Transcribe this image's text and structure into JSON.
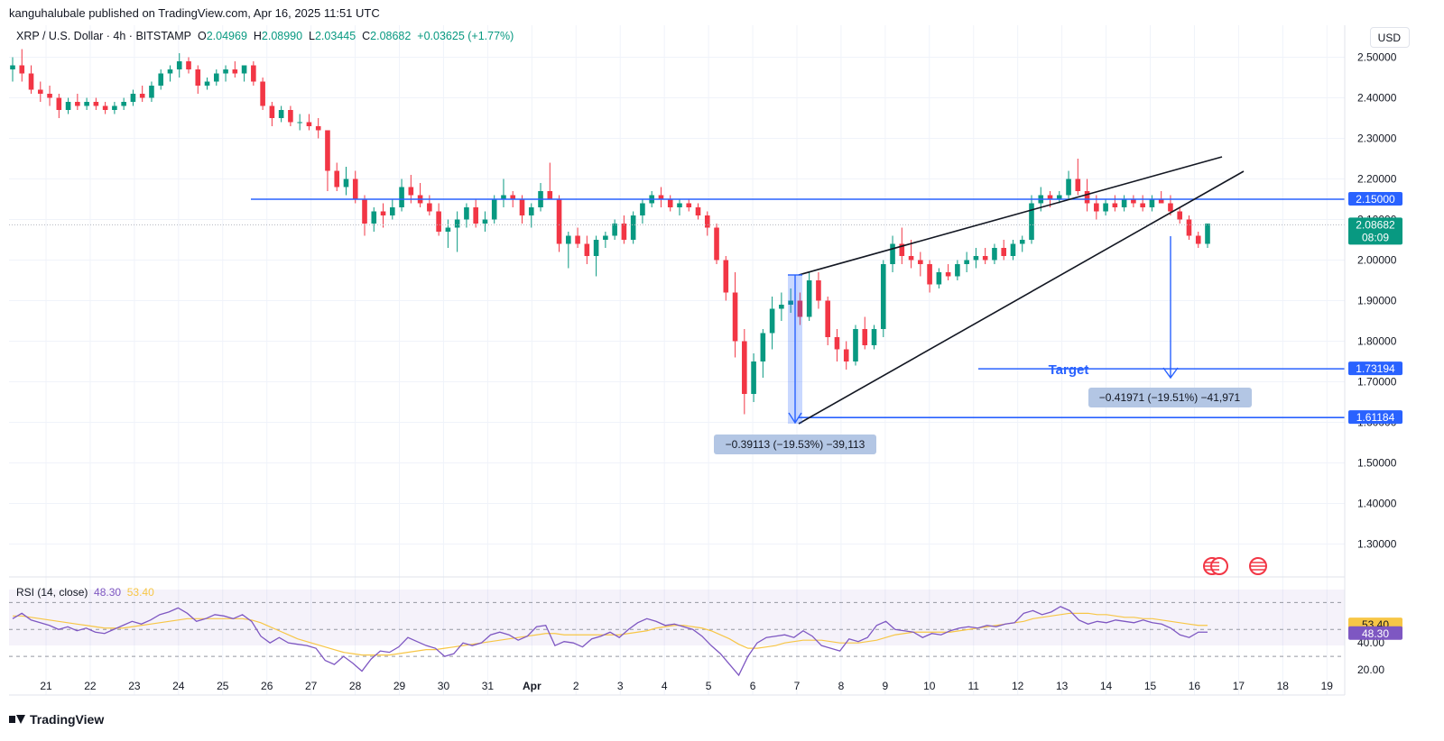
{
  "header": {
    "published_by": "kanguhalubale published on TradingView.com, Apr 16, 2025 11:51 UTC"
  },
  "legend": {
    "symbol": "XRP / U.S. Dollar · 4h · BITSTAMP",
    "o_label": "O",
    "o_value": "2.04969",
    "h_label": "H",
    "h_value": "2.08990",
    "l_label": "L",
    "l_value": "2.03445",
    "c_label": "C",
    "c_value": "2.08682",
    "change": "+0.03625 (+1.77%)"
  },
  "currency": "USD",
  "colors": {
    "up": "#089981",
    "down": "#f23645",
    "annotation": "#2962ff",
    "rsi": "#7e57c2",
    "rsi_ma": "#f7c646"
  },
  "chart_data": {
    "type": "candlestick",
    "symbol": "XRP/USD",
    "interval": "4h",
    "exchange": "BITSTAMP",
    "x_ticks": [
      "21",
      "22",
      "23",
      "24",
      "25",
      "26",
      "27",
      "28",
      "29",
      "30",
      "31",
      "Apr",
      "2",
      "3",
      "4",
      "5",
      "6",
      "7",
      "8",
      "9",
      "10",
      "11",
      "12",
      "13",
      "14",
      "15",
      "16",
      "17",
      "18",
      "19"
    ],
    "y_ticks": [
      "2.50000",
      "2.40000",
      "2.30000",
      "2.20000",
      "2.10000",
      "2.00000",
      "1.90000",
      "1.80000",
      "1.70000",
      "1.60000",
      "1.50000",
      "1.40000",
      "1.30000"
    ],
    "y_range": [
      1.23,
      2.57
    ],
    "candles": [
      [
        2.47,
        2.5,
        2.44,
        2.48
      ],
      [
        2.48,
        2.52,
        2.44,
        2.46
      ],
      [
        2.46,
        2.48,
        2.41,
        2.42
      ],
      [
        2.42,
        2.44,
        2.39,
        2.41
      ],
      [
        2.41,
        2.43,
        2.38,
        2.4
      ],
      [
        2.4,
        2.41,
        2.35,
        2.37
      ],
      [
        2.37,
        2.4,
        2.36,
        2.39
      ],
      [
        2.39,
        2.41,
        2.37,
        2.38
      ],
      [
        2.38,
        2.4,
        2.37,
        2.39
      ],
      [
        2.39,
        2.4,
        2.37,
        2.38
      ],
      [
        2.38,
        2.39,
        2.36,
        2.37
      ],
      [
        2.37,
        2.39,
        2.36,
        2.38
      ],
      [
        2.38,
        2.4,
        2.37,
        2.39
      ],
      [
        2.39,
        2.42,
        2.38,
        2.41
      ],
      [
        2.41,
        2.43,
        2.39,
        2.4
      ],
      [
        2.4,
        2.44,
        2.39,
        2.43
      ],
      [
        2.43,
        2.47,
        2.42,
        2.46
      ],
      [
        2.46,
        2.48,
        2.44,
        2.47
      ],
      [
        2.47,
        2.51,
        2.45,
        2.49
      ],
      [
        2.49,
        2.5,
        2.46,
        2.47
      ],
      [
        2.47,
        2.48,
        2.41,
        2.43
      ],
      [
        2.43,
        2.45,
        2.42,
        2.44
      ],
      [
        2.44,
        2.47,
        2.43,
        2.46
      ],
      [
        2.46,
        2.48,
        2.44,
        2.47
      ],
      [
        2.47,
        2.49,
        2.45,
        2.46
      ],
      [
        2.46,
        2.48,
        2.44,
        2.48
      ],
      [
        2.48,
        2.49,
        2.43,
        2.44
      ],
      [
        2.44,
        2.45,
        2.37,
        2.38
      ],
      [
        2.38,
        2.39,
        2.33,
        2.35
      ],
      [
        2.35,
        2.38,
        2.34,
        2.37
      ],
      [
        2.37,
        2.38,
        2.33,
        2.34
      ],
      [
        2.34,
        2.36,
        2.32,
        2.34
      ],
      [
        2.34,
        2.36,
        2.32,
        2.33
      ],
      [
        2.33,
        2.35,
        2.3,
        2.32
      ],
      [
        2.32,
        2.32,
        2.17,
        2.22
      ],
      [
        2.22,
        2.24,
        2.17,
        2.18
      ],
      [
        2.18,
        2.23,
        2.16,
        2.2
      ],
      [
        2.2,
        2.22,
        2.14,
        2.15
      ],
      [
        2.15,
        2.16,
        2.06,
        2.09
      ],
      [
        2.09,
        2.13,
        2.07,
        2.12
      ],
      [
        2.12,
        2.14,
        2.08,
        2.11
      ],
      [
        2.11,
        2.15,
        2.1,
        2.13
      ],
      [
        2.13,
        2.2,
        2.12,
        2.18
      ],
      [
        2.18,
        2.21,
        2.14,
        2.16
      ],
      [
        2.16,
        2.19,
        2.13,
        2.14
      ],
      [
        2.14,
        2.16,
        2.11,
        2.12
      ],
      [
        2.12,
        2.14,
        2.06,
        2.07
      ],
      [
        2.07,
        2.1,
        2.03,
        2.08
      ],
      [
        2.08,
        2.12,
        2.02,
        2.1
      ],
      [
        2.1,
        2.14,
        2.08,
        2.13
      ],
      [
        2.13,
        2.15,
        2.08,
        2.09
      ],
      [
        2.09,
        2.12,
        2.07,
        2.1
      ],
      [
        2.1,
        2.16,
        2.09,
        2.15
      ],
      [
        2.15,
        2.2,
        2.13,
        2.16
      ],
      [
        2.16,
        2.17,
        2.13,
        2.15
      ],
      [
        2.15,
        2.16,
        2.09,
        2.11
      ],
      [
        2.11,
        2.14,
        2.08,
        2.13
      ],
      [
        2.13,
        2.19,
        2.12,
        2.17
      ],
      [
        2.17,
        2.24,
        2.16,
        2.15
      ],
      [
        2.15,
        2.16,
        2.02,
        2.04
      ],
      [
        2.04,
        2.07,
        1.98,
        2.06
      ],
      [
        2.06,
        2.08,
        2.03,
        2.04
      ],
      [
        2.04,
        2.06,
        1.99,
        2.01
      ],
      [
        2.01,
        2.06,
        1.96,
        2.05
      ],
      [
        2.05,
        2.07,
        2.03,
        2.06
      ],
      [
        2.06,
        2.1,
        2.05,
        2.09
      ],
      [
        2.09,
        2.11,
        2.04,
        2.05
      ],
      [
        2.05,
        2.12,
        2.04,
        2.11
      ],
      [
        2.11,
        2.15,
        2.09,
        2.14
      ],
      [
        2.14,
        2.17,
        2.13,
        2.16
      ],
      [
        2.16,
        2.18,
        2.13,
        2.15
      ],
      [
        2.15,
        2.16,
        2.12,
        2.13
      ],
      [
        2.13,
        2.15,
        2.11,
        2.14
      ],
      [
        2.14,
        2.15,
        2.12,
        2.13
      ],
      [
        2.13,
        2.14,
        2.1,
        2.11
      ],
      [
        2.11,
        2.12,
        2.06,
        2.08
      ],
      [
        2.08,
        2.09,
        1.99,
        2.0
      ],
      [
        2.0,
        2.01,
        1.9,
        1.92
      ],
      [
        1.92,
        1.97,
        1.76,
        1.8
      ],
      [
        1.8,
        1.83,
        1.62,
        1.67
      ],
      [
        1.67,
        1.77,
        1.65,
        1.75
      ],
      [
        1.75,
        1.83,
        1.71,
        1.82
      ],
      [
        1.82,
        1.91,
        1.78,
        1.88
      ],
      [
        1.88,
        1.92,
        1.85,
        1.89
      ],
      [
        1.89,
        1.93,
        1.87,
        1.9
      ],
      [
        1.9,
        1.92,
        1.84,
        1.86
      ],
      [
        1.86,
        1.97,
        1.85,
        1.95
      ],
      [
        1.95,
        1.97,
        1.88,
        1.9
      ],
      [
        1.9,
        1.91,
        1.79,
        1.81
      ],
      [
        1.81,
        1.83,
        1.75,
        1.78
      ],
      [
        1.78,
        1.8,
        1.73,
        1.75
      ],
      [
        1.75,
        1.84,
        1.74,
        1.83
      ],
      [
        1.83,
        1.86,
        1.78,
        1.79
      ],
      [
        1.79,
        1.84,
        1.78,
        1.83
      ],
      [
        1.83,
        2.0,
        1.81,
        1.99
      ],
      [
        1.99,
        2.06,
        1.97,
        2.04
      ],
      [
        2.04,
        2.08,
        1.99,
        2.01
      ],
      [
        2.01,
        2.05,
        1.98,
        2.0
      ],
      [
        2.0,
        2.02,
        1.96,
        1.99
      ],
      [
        1.99,
        2.0,
        1.92,
        1.94
      ],
      [
        1.94,
        1.98,
        1.93,
        1.97
      ],
      [
        1.97,
        1.99,
        1.95,
        1.96
      ],
      [
        1.96,
        2.0,
        1.95,
        1.99
      ],
      [
        1.99,
        2.02,
        1.97,
        2.0
      ],
      [
        2.0,
        2.03,
        1.98,
        2.01
      ],
      [
        2.01,
        2.03,
        1.99,
        2.0
      ],
      [
        2.0,
        2.04,
        1.99,
        2.03
      ],
      [
        2.03,
        2.05,
        2.0,
        2.01
      ],
      [
        2.01,
        2.05,
        2.0,
        2.04
      ],
      [
        2.04,
        2.06,
        2.02,
        2.05
      ],
      [
        2.05,
        2.16,
        2.04,
        2.14
      ],
      [
        2.14,
        2.18,
        2.12,
        2.16
      ],
      [
        2.16,
        2.17,
        2.13,
        2.15
      ],
      [
        2.15,
        2.17,
        2.14,
        2.16
      ],
      [
        2.16,
        2.22,
        2.15,
        2.2
      ],
      [
        2.2,
        2.25,
        2.16,
        2.17
      ],
      [
        2.17,
        2.2,
        2.12,
        2.14
      ],
      [
        2.14,
        2.16,
        2.1,
        2.12
      ],
      [
        2.12,
        2.15,
        2.11,
        2.14
      ],
      [
        2.14,
        2.16,
        2.12,
        2.13
      ],
      [
        2.13,
        2.16,
        2.12,
        2.15
      ],
      [
        2.15,
        2.16,
        2.13,
        2.14
      ],
      [
        2.14,
        2.16,
        2.12,
        2.13
      ],
      [
        2.13,
        2.16,
        2.12,
        2.15
      ],
      [
        2.15,
        2.17,
        2.14,
        2.14
      ],
      [
        2.14,
        2.16,
        2.11,
        2.12
      ],
      [
        2.12,
        2.13,
        2.09,
        2.1
      ],
      [
        2.1,
        2.11,
        2.05,
        2.06
      ],
      [
        2.06,
        2.07,
        2.03,
        2.04
      ],
      [
        2.04,
        2.09,
        2.03,
        2.09
      ]
    ],
    "rsi": {
      "label": "RSI (14, close)",
      "value": "48.30",
      "ma_value": "53.40",
      "y_ticks": [
        "40.00",
        "20.00"
      ],
      "y_range": [
        14,
        85
      ],
      "bands": [
        30,
        50,
        70
      ],
      "values": [
        58,
        62,
        57,
        55,
        53,
        50,
        52,
        49,
        51,
        48,
        47,
        50,
        53,
        56,
        54,
        57,
        61,
        63,
        66,
        62,
        56,
        58,
        61,
        60,
        58,
        61,
        56,
        45,
        40,
        44,
        40,
        39,
        38,
        36,
        27,
        24,
        30,
        25,
        19,
        28,
        34,
        33,
        37,
        44,
        41,
        38,
        36,
        30,
        32,
        40,
        38,
        40,
        46,
        48,
        46,
        42,
        45,
        52,
        53,
        38,
        41,
        40,
        37,
        43,
        45,
        48,
        44,
        50,
        55,
        58,
        56,
        53,
        54,
        52,
        50,
        45,
        38,
        32,
        24,
        16,
        30,
        40,
        44,
        45,
        46,
        44,
        49,
        45,
        38,
        36,
        34,
        43,
        41,
        44,
        53,
        56,
        50,
        49,
        48,
        44,
        47,
        46,
        49,
        51,
        52,
        51,
        53,
        52,
        54,
        55,
        62,
        64,
        61,
        63,
        67,
        64,
        57,
        54,
        56,
        55,
        57,
        56,
        55,
        57,
        55,
        54,
        51,
        46,
        44,
        48,
        48
      ],
      "ma": [
        60,
        60,
        59,
        58,
        57,
        56,
        55,
        54,
        53,
        52,
        51,
        51,
        51,
        52,
        53,
        54,
        55,
        56,
        57,
        58,
        58,
        58,
        58,
        58,
        58,
        58,
        57,
        55,
        52,
        49,
        46,
        43,
        41,
        39,
        37,
        35,
        33,
        32,
        31,
        31,
        31,
        31,
        32,
        33,
        34,
        35,
        35,
        36,
        37,
        38,
        39,
        40,
        41,
        42,
        43,
        44,
        45,
        46,
        47,
        47,
        46,
        46,
        46,
        46,
        46,
        46,
        46,
        47,
        48,
        49,
        51,
        52,
        53,
        53,
        52,
        51,
        49,
        46,
        43,
        39,
        36,
        36,
        37,
        38,
        40,
        41,
        42,
        42,
        42,
        41,
        40,
        40,
        40,
        41,
        42,
        44,
        46,
        47,
        48,
        48,
        48,
        48,
        48,
        49,
        50,
        51,
        52,
        53,
        54,
        55,
        56,
        58,
        59,
        60,
        61,
        62,
        62,
        62,
        61,
        61,
        60,
        59,
        59,
        58,
        58,
        57,
        56,
        55,
        54,
        53,
        53
      ]
    },
    "levels": [
      {
        "name": "resistance",
        "value": "2.15000"
      },
      {
        "name": "target",
        "value": "1.73194",
        "label": "Target"
      },
      {
        "name": "low",
        "value": "1.61184"
      }
    ],
    "current_price": {
      "value": "2.08682",
      "countdown": "08:09"
    },
    "measurements": [
      "−0.39113 (−19.53%) −39,113",
      "−0.41971 (−19.51%) −41,971"
    ],
    "rsi_axis_labels": [
      "53.40",
      "48.30"
    ]
  },
  "footer": {
    "brand": "TradingView"
  }
}
